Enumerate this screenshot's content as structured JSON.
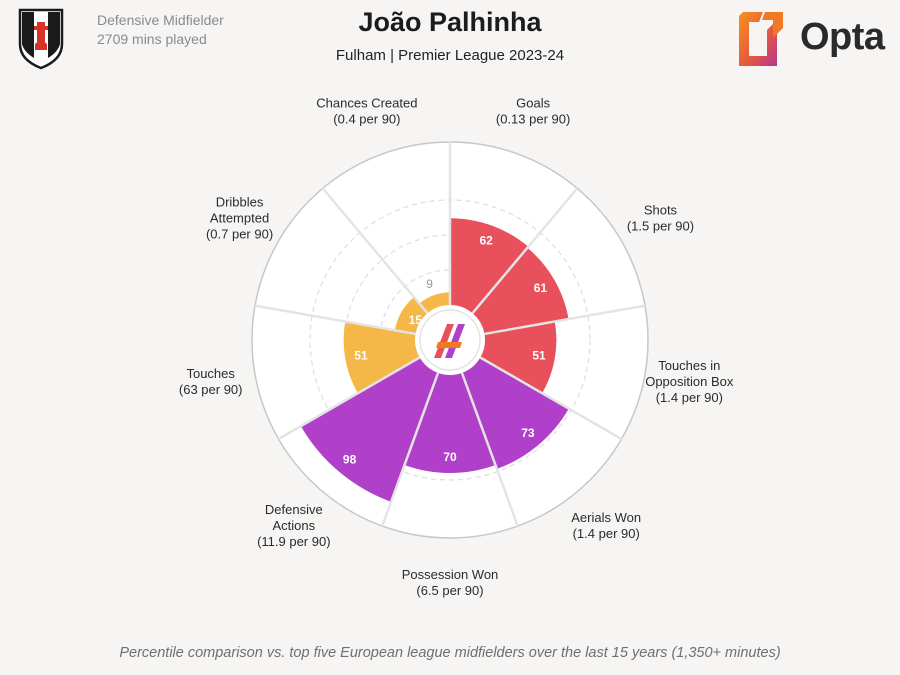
{
  "header": {
    "position": "Defensive Midfielder",
    "minutes": "2709 mins played",
    "title": "João Palhinha",
    "subtitle": "Fulham | Premier League 2023-24",
    "brand": "Opta"
  },
  "footnote": "Percentile comparison vs. top five European league midfielders over the last 15 years (1,350+ minutes)",
  "colors": {
    "attacking": "#e8505b",
    "possession": "#f5b848",
    "defending": "#b03fc9",
    "low_value": "#9a9a9a",
    "opta_orange": "#f07a23",
    "opta_magenta": "#b5378f"
  },
  "chart_data": {
    "type": "polar-bar",
    "title": "João Palhinha",
    "value_scale": [
      0,
      100
    ],
    "metrics": [
      {
        "name": "Goals",
        "lines": [
          "Goals",
          "(0.13 per 90)"
        ],
        "value": 62,
        "group": "attacking"
      },
      {
        "name": "Shots",
        "lines": [
          "Shots",
          "(1.5 per 90)"
        ],
        "value": 61,
        "group": "attacking"
      },
      {
        "name": "Touches in Opposition Box",
        "lines": [
          "Touches in",
          "Opposition Box",
          "(1.4 per 90)"
        ],
        "value": 51,
        "group": "attacking"
      },
      {
        "name": "Aerials Won",
        "lines": [
          "Aerials Won",
          "(1.4 per 90)"
        ],
        "value": 73,
        "group": "defending"
      },
      {
        "name": "Possession Won",
        "lines": [
          "Possession Won",
          "(6.5 per 90)"
        ],
        "value": 70,
        "group": "defending"
      },
      {
        "name": "Defensive Actions",
        "lines": [
          "Defensive",
          "Actions",
          "(11.9 per 90)"
        ],
        "value": 98,
        "group": "defending"
      },
      {
        "name": "Touches",
        "lines": [
          "Touches",
          "(63 per 90)"
        ],
        "value": 51,
        "group": "possession"
      },
      {
        "name": "Dribbles Attempted",
        "lines": [
          "Dribbles",
          "Attempted",
          "(0.7 per 90)"
        ],
        "value": 15,
        "group": "possession"
      },
      {
        "name": "Chances Created",
        "lines": [
          "Chances Created",
          "(0.4 per 90)"
        ],
        "value": 9,
        "group": "possession"
      }
    ]
  }
}
